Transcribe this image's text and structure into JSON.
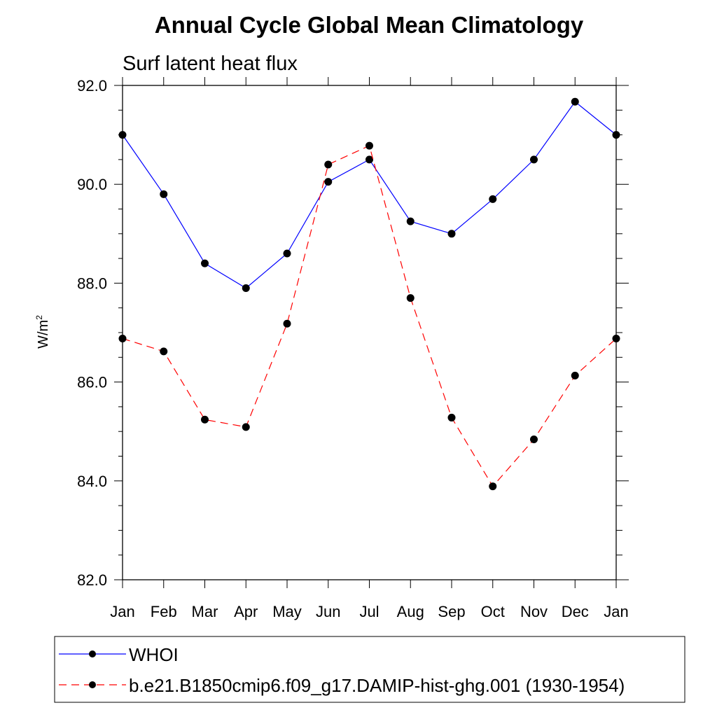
{
  "chart_data": {
    "type": "line",
    "title": "Annual Cycle Global Mean Climatology",
    "subtitle": "Surf latent heat flux",
    "xlabel": "",
    "ylabel": "W/m",
    "ylabel_superscript": "2",
    "categories": [
      "Jan",
      "Feb",
      "Mar",
      "Apr",
      "May",
      "Jun",
      "Jul",
      "Aug",
      "Sep",
      "Oct",
      "Nov",
      "Dec",
      "Jan"
    ],
    "yticks": [
      "82.0",
      "84.0",
      "86.0",
      "88.0",
      "90.0",
      "92.0"
    ],
    "ylim": [
      82,
      92
    ],
    "grid": false,
    "legend_position": "bottom",
    "series": [
      {
        "name": "WHOI",
        "color": "#0000ff",
        "dash": "solid",
        "marker": "filled-circle",
        "values": [
          91.0,
          89.8,
          88.4,
          87.9,
          88.6,
          90.05,
          90.5,
          89.25,
          89.0,
          89.7,
          90.5,
          91.67,
          91.0
        ]
      },
      {
        "name": "b.e21.B1850cmip6.f09_g17.DAMIP-hist-ghg.001 (1930-1954)",
        "color": "#ff0000",
        "dash": "dashed",
        "marker": "filled-circle",
        "values": [
          86.88,
          86.62,
          85.24,
          85.09,
          87.18,
          90.4,
          90.78,
          87.7,
          85.28,
          83.89,
          84.84,
          86.13,
          86.88
        ]
      }
    ]
  }
}
